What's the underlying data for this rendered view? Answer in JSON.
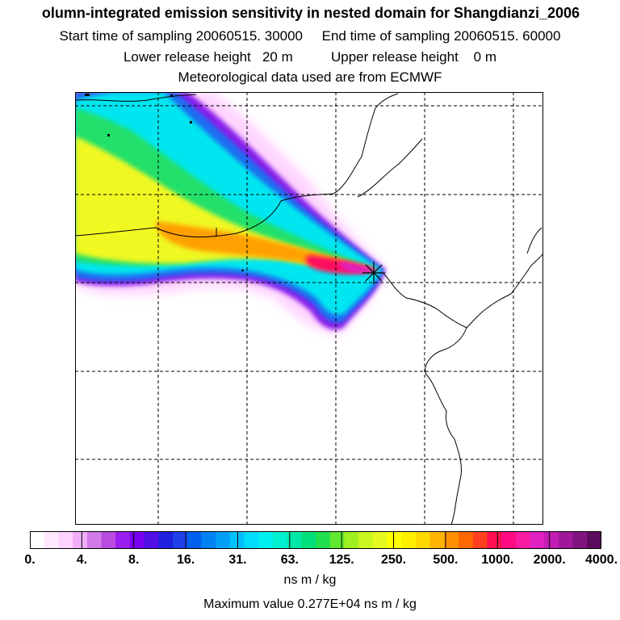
{
  "header": {
    "title": "olumn-integrated emission sensitivity in nested domain for Shangdianzi_2006",
    "sampling_line": "Start time of sampling 20060515. 30000     End time of sampling 20060515. 60000",
    "release_line": "Lower release height   20 m          Upper release height    0 m",
    "met_line": "Meteorological data used are from ECMWF"
  },
  "colorbar": {
    "ticks": [
      "0.",
      "4.",
      "8.",
      "16.",
      "31.",
      "63.",
      "125.",
      "250.",
      "500.",
      "1000.",
      "2000.",
      "4000."
    ],
    "colors": [
      "#ffffff",
      "#ffe9ff",
      "#ffd2ff",
      "#f0aef8",
      "#d27be8",
      "#b84be0",
      "#9a1ef0",
      "#7a00f0",
      "#5010e6",
      "#2020e0",
      "#1e40e8",
      "#0060f0",
      "#0082f4",
      "#00a0f8",
      "#00c0fa",
      "#00dcfa",
      "#00f0f0",
      "#00f0d0",
      "#00e8a8",
      "#00e07a",
      "#20e050",
      "#60e830",
      "#a0f020",
      "#c8f820",
      "#e6fa20",
      "#ffff00",
      "#fff000",
      "#ffd800",
      "#ffb400",
      "#ff9000",
      "#ff6800",
      "#ff4020",
      "#ff1050",
      "#ff0a84",
      "#f81ca4",
      "#e020c0",
      "#c21cb4",
      "#a0189a",
      "#801480",
      "#5c0c5c"
    ],
    "units": "ns m / kg"
  },
  "max_value_text": "Maximum value  0.277E+04 ns m / kg",
  "map": {
    "receptor_marker": "star-marker",
    "grid_style": "dashed"
  }
}
